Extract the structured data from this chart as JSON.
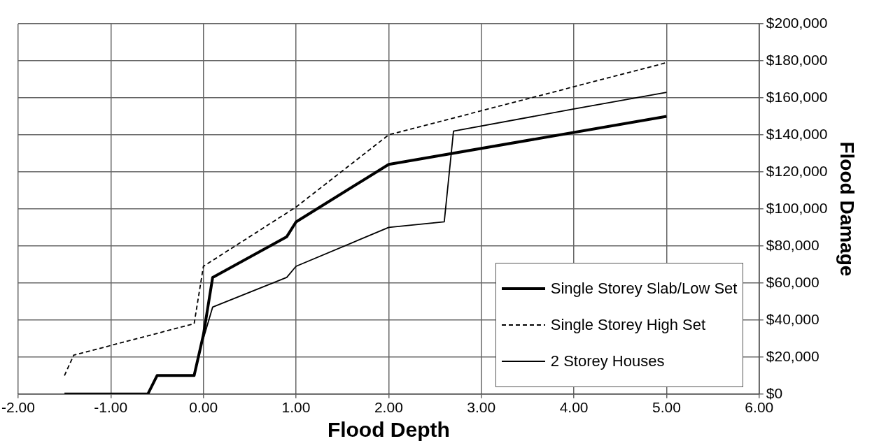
{
  "chart_data": {
    "type": "line",
    "xlabel": "Flood Depth",
    "ylabel": "Flood Damage",
    "xlim": [
      -2,
      6
    ],
    "xticks": [
      {
        "value": -2,
        "label": "-2.00"
      },
      {
        "value": -1,
        "label": "-1.00"
      },
      {
        "value": 0,
        "label": "0.00"
      },
      {
        "value": 1,
        "label": "1.00"
      },
      {
        "value": 2,
        "label": "2.00"
      },
      {
        "value": 3,
        "label": "3.00"
      },
      {
        "value": 4,
        "label": "4.00"
      },
      {
        "value": 5,
        "label": "5.00"
      },
      {
        "value": 6,
        "label": "6.00"
      }
    ],
    "ylim": [
      0,
      200000
    ],
    "yticks": [
      {
        "value": 0,
        "label": "$0"
      },
      {
        "value": 20000,
        "label": "$20,000"
      },
      {
        "value": 40000,
        "label": "$40,000"
      },
      {
        "value": 60000,
        "label": "$60,000"
      },
      {
        "value": 80000,
        "label": "$80,000"
      },
      {
        "value": 100000,
        "label": "$100,000"
      },
      {
        "value": 120000,
        "label": "$120,000"
      },
      {
        "value": 140000,
        "label": "$140,000"
      },
      {
        "value": 160000,
        "label": "$160,000"
      },
      {
        "value": 180000,
        "label": "$180,000"
      },
      {
        "value": 200000,
        "label": "$200,000"
      }
    ],
    "grid": true,
    "legend": "bottom right",
    "marker": "none",
    "series": [
      {
        "name": "Single Storey Slab/Low Set",
        "color": "#000000",
        "line_style": "solid",
        "x": [
          -1.5,
          -0.6,
          -0.5,
          -0.1,
          0.0,
          0.1,
          0.9,
          1.0,
          2.0,
          5.0
        ],
        "values": [
          0,
          0,
          10000,
          10000,
          32000,
          63000,
          85000,
          93000,
          124000,
          150000
        ]
      },
      {
        "name": "Single Storey High Set",
        "color": "#000000",
        "line_style": "dashed",
        "x": [
          -1.5,
          -1.4,
          -0.1,
          0.0,
          1.0,
          2.0,
          3.0,
          4.0,
          5.0
        ],
        "values": [
          10000,
          21000,
          38000,
          69000,
          101000,
          140000,
          153000,
          166000,
          179000
        ]
      },
      {
        "name": "2 Storey Houses",
        "color": "#000000",
        "line_style": "solid",
        "x": [
          0.0,
          0.1,
          0.9,
          1.0,
          2.0,
          2.6,
          2.7,
          4.0,
          5.0
        ],
        "values": [
          30000,
          47000,
          63000,
          69000,
          90000,
          93000,
          142000,
          154000,
          163000
        ]
      }
    ]
  }
}
